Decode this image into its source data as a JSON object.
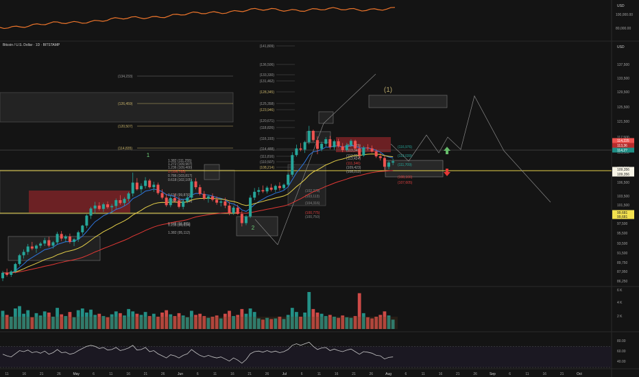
{
  "header": {
    "symbol_title": "Bitcoin / U.S. Dollar · 1D · BITSTAMP",
    "currency_top": "USD",
    "currency_main": "USD"
  },
  "overview": {
    "price_ticks": [
      "100,000.00",
      "80,000.00"
    ],
    "line_color": "#f0762b"
  },
  "colors": {
    "up": "#26a69a",
    "down": "#ef5350",
    "fib": "#c9b46a",
    "yellow": "#e8d24a",
    "blue": "#2f77e0",
    "red": "#e53935",
    "green": "#66bb6a",
    "zone_red": "#7a2226",
    "zone_grey": "#2a2a2a",
    "label_red": "#e04040",
    "label_cyan": "#26a69a",
    "label_gold": "#a08a3a"
  },
  "price_axis": [
    "137,500",
    "133,500",
    "129,500",
    "125,500",
    "121,500",
    "117,500",
    "113,500",
    "109,500",
    "106,500",
    "103,500",
    "101,500",
    "99,500",
    "97,500",
    "95,500",
    "93,500",
    "91,500",
    "89,750",
    "87,950",
    "86,250"
  ],
  "price_labels": [
    {
      "text": "114,225",
      "style": "red"
    },
    {
      "text": "113,36",
      "style": "red2"
    },
    {
      "text": "114,2?",
      "style": "cyan"
    },
    {
      "text": "109,356",
      "style": "gold"
    },
    {
      "text": "109,356",
      "style": "gold"
    },
    {
      "text": "99,681",
      "style": "yellowbox"
    },
    {
      "text": "99,681",
      "style": "yellowbox"
    }
  ],
  "fib_left": [
    "(134,233)",
    "(126,459)",
    "(120,507)",
    "(114,835)"
  ],
  "fib_mid": [
    "(141,809)",
    "(136,506)",
    "(133,330)",
    "(131,462)",
    "(128,345)",
    "(125,358)",
    "(123,946)",
    "(120,671)",
    "(118,826)",
    "(116,193)",
    "(114,488)",
    "(111,816)",
    "(110,507)",
    "(108,214)"
  ],
  "fib_cluster": [
    "1.382 (111,255)",
    "1.272 (109,907)",
    "1.236 (109,400)",
    "1 (106,785)",
    "0.786 (103,817)",
    "0.618 (102,105)",
    "0.618 (99,876)",
    "0.786 (101,748)",
    "0.786 (96,885)",
    "1.236 (96,634)",
    "1.382 (95,112)"
  ],
  "fib_right": [
    "(114,529)",
    "(113,346)",
    "(112,894)",
    "(113,424)",
    "(111,346)",
    "(109,423)",
    "(108,212)"
  ],
  "fib_lower": [
    "(102,279)",
    "(103,113)",
    "(104,316)",
    "(100,775)",
    "(100,750)"
  ],
  "fib_far_right": [
    "(116,976)",
    "(113,039)",
    "(111,709)",
    "(108,166)",
    "(107,605)"
  ],
  "wave_labels": {
    "one_big": "(1)",
    "one_small": "1",
    "two_small": "2"
  },
  "x_axis": [
    "11",
    "16",
    "21",
    "26",
    "May",
    "6",
    "11",
    "16",
    "21",
    "26",
    "Jun",
    "6",
    "11",
    "16",
    "21",
    "26",
    "Jul",
    "6",
    "11",
    "16",
    "21",
    "26",
    "Aug",
    "6",
    "11",
    "16",
    "21",
    "26",
    "Sep",
    "6",
    "11",
    "16",
    "21",
    "Oct"
  ],
  "volume_axis": [
    "6 K",
    "4 K",
    "2 K"
  ],
  "rsi_axis": [
    "80.00",
    "60.00",
    "40.00"
  ],
  "chart_data": {
    "type": "candlestick",
    "title": "Bitcoin / U.S. Dollar · 1D · BITSTAMP",
    "ylabel": "USD",
    "ylim": [
      85000,
      141000
    ],
    "candles": [
      [
        86500,
        88200,
        85800,
        87800
      ],
      [
        87800,
        88800,
        86900,
        87300
      ],
      [
        87300,
        88400,
        86800,
        88100
      ],
      [
        88100,
        90200,
        87700,
        89900
      ],
      [
        89900,
        92300,
        89500,
        92000
      ],
      [
        92000,
        93400,
        91200,
        92800
      ],
      [
        92800,
        94700,
        92100,
        94100
      ],
      [
        94100,
        95200,
        93200,
        93600
      ],
      [
        93600,
        94600,
        92600,
        94300
      ],
      [
        94300,
        95200,
        93700,
        94800
      ],
      [
        94800,
        96200,
        94200,
        95600
      ],
      [
        95600,
        96400,
        93900,
        94300
      ],
      [
        94300,
        95400,
        93600,
        95100
      ],
      [
        95100,
        97600,
        94600,
        97100
      ],
      [
        97100,
        97800,
        95400,
        96000
      ],
      [
        96000,
        96900,
        95100,
        96500
      ],
      [
        96500,
        97200,
        94800,
        95200
      ],
      [
        95200,
        96100,
        94200,
        95800
      ],
      [
        95800,
        97900,
        95200,
        97500
      ],
      [
        97500,
        99300,
        96900,
        99100
      ],
      [
        99100,
        101800,
        98500,
        101500
      ],
      [
        101500,
        103600,
        100700,
        103200
      ],
      [
        103200,
        104800,
        102000,
        103900
      ],
      [
        103900,
        104700,
        102700,
        103100
      ],
      [
        103100,
        104600,
        102400,
        104200
      ],
      [
        104200,
        104900,
        103100,
        103500
      ],
      [
        103500,
        104300,
        102200,
        103800
      ],
      [
        103800,
        105600,
        103100,
        105200
      ],
      [
        105200,
        106400,
        104100,
        104500
      ],
      [
        104500,
        105900,
        103800,
        105500
      ],
      [
        105500,
        107200,
        104900,
        106800
      ],
      [
        106800,
        111800,
        106100,
        109400
      ],
      [
        109400,
        110500,
        107500,
        107800
      ],
      [
        107800,
        109200,
        106900,
        108600
      ],
      [
        108600,
        110700,
        108000,
        109900
      ],
      [
        109900,
        110300,
        108000,
        108300
      ],
      [
        108300,
        109600,
        107200,
        108900
      ],
      [
        108900,
        109400,
        106500,
        106900
      ],
      [
        106900,
        107800,
        105400,
        105800
      ],
      [
        105800,
        106700,
        103600,
        104000
      ],
      [
        104000,
        106200,
        103500,
        105700
      ],
      [
        105700,
        106700,
        104600,
        105100
      ],
      [
        105100,
        106000,
        103200,
        103600
      ],
      [
        103600,
        105400,
        103000,
        104900
      ],
      [
        104900,
        106300,
        104500,
        105800
      ],
      [
        105800,
        110200,
        105300,
        109700
      ],
      [
        109700,
        110500,
        107800,
        108300
      ],
      [
        108300,
        108900,
        106300,
        106700
      ],
      [
        106700,
        107400,
        105200,
        105600
      ],
      [
        105600,
        106500,
        104600,
        106100
      ],
      [
        106100,
        106800,
        104900,
        105300
      ],
      [
        105300,
        106100,
        104100,
        104600
      ],
      [
        104600,
        105500,
        103700,
        104900
      ],
      [
        104900,
        105800,
        103300,
        103900
      ],
      [
        103900,
        104700,
        101600,
        102100
      ],
      [
        102100,
        103800,
        101700,
        103400
      ],
      [
        103400,
        104100,
        101700,
        101900
      ],
      [
        101900,
        102600,
        98900,
        99700
      ],
      [
        99700,
        101600,
        99200,
        101300
      ],
      [
        101300,
        106400,
        100900,
        105800
      ],
      [
        105800,
        108100,
        105200,
        107200
      ],
      [
        107200,
        108300,
        106400,
        107600
      ],
      [
        107600,
        108700,
        106900,
        107300
      ],
      [
        107300,
        108600,
        106800,
        108200
      ],
      [
        108200,
        109100,
        107300,
        107700
      ],
      [
        107700,
        108900,
        107100,
        108600
      ],
      [
        108600,
        109500,
        107500,
        108100
      ],
      [
        108100,
        109200,
        107700,
        108900
      ],
      [
        108900,
        111700,
        108600,
        111300
      ],
      [
        111300,
        116700,
        110800,
        116000
      ],
      [
        116000,
        118500,
        115600,
        117600
      ],
      [
        117600,
        118900,
        116900,
        117300
      ],
      [
        117300,
        119400,
        116500,
        119100
      ],
      [
        119100,
        123000,
        118600,
        121800
      ],
      [
        121800,
        122100,
        119200,
        119600
      ],
      [
        119600,
        120500,
        116200,
        117500
      ],
      [
        117500,
        119200,
        116900,
        118700
      ],
      [
        118700,
        120300,
        118000,
        119800
      ],
      [
        119800,
        120600,
        117400,
        117900
      ],
      [
        117900,
        119700,
        117300,
        119300
      ],
      [
        119300,
        119900,
        117800,
        118100
      ],
      [
        118100,
        118900,
        116700,
        117200
      ],
      [
        117200,
        118900,
        116900,
        118400
      ],
      [
        118400,
        119800,
        117900,
        119400
      ],
      [
        119400,
        119700,
        117300,
        117600
      ],
      [
        117600,
        118400,
        115200,
        115900
      ],
      [
        115900,
        118200,
        115600,
        117800
      ],
      [
        117800,
        118600,
        117100,
        117600
      ],
      [
        117600,
        118300,
        116600,
        116900
      ],
      [
        116900,
        117400,
        115300,
        115700
      ],
      [
        115700,
        116500,
        114700,
        115300
      ],
      [
        115300,
        115900,
        112400,
        113200
      ],
      [
        113200,
        114600,
        112600,
        114200
      ],
      [
        114200,
        115100,
        113600,
        114500
      ]
    ],
    "volume": [
      3.1,
      2.4,
      2.1,
      3.5,
      3.9,
      2.6,
      3.2,
      2.0,
      2.7,
      2.3,
      3.0,
      2.8,
      2.1,
      3.6,
      2.5,
      2.2,
      2.9,
      2.0,
      3.2,
      3.5,
      2.8,
      3.3,
      2.4,
      2.6,
      2.2,
      2.0,
      2.5,
      3.0,
      2.7,
      2.3,
      3.4,
      3.0,
      2.6,
      2.4,
      2.9,
      2.2,
      2.6,
      2.1,
      2.8,
      3.2,
      2.5,
      2.2,
      2.7,
      2.3,
      2.0,
      3.1,
      2.4,
      2.6,
      2.2,
      1.9,
      2.1,
      2.3,
      1.8,
      2.6,
      3.1,
      2.2,
      2.4,
      3.4,
      2.6,
      3.5,
      2.9,
      1.8,
      1.6,
      1.9,
      1.7,
      1.8,
      2.1,
      1.7,
      2.4,
      3.6,
      2.9,
      2.1,
      2.8,
      6.3,
      3.4,
      2.8,
      2.6,
      2.2,
      2.4,
      2.1,
      1.9,
      2.3,
      2.0,
      1.9,
      2.2,
      6.1,
      2.7,
      2.0,
      1.8,
      2.1,
      2.4,
      3.0,
      2.3,
      1.6
    ],
    "rsi": [
      55,
      52,
      50,
      56,
      62,
      60,
      63,
      58,
      60,
      57,
      61,
      55,
      58,
      64,
      58,
      59,
      55,
      57,
      62,
      66,
      70,
      72,
      70,
      66,
      68,
      63,
      64,
      68,
      62,
      64,
      67,
      72,
      63,
      64,
      68,
      60,
      62,
      56,
      52,
      48,
      54,
      52,
      48,
      53,
      56,
      64,
      58,
      53,
      50,
      53,
      50,
      48,
      50,
      46,
      42,
      48,
      44,
      38,
      45,
      56,
      60,
      61,
      59,
      62,
      59,
      61,
      58,
      60,
      64,
      72,
      75,
      72,
      75,
      78,
      70,
      64,
      67,
      68,
      62,
      65,
      62,
      60,
      63,
      65,
      60,
      55,
      60,
      59,
      57,
      53,
      52,
      46,
      49,
      50
    ],
    "rsi_ylim": [
      30,
      90
    ]
  }
}
